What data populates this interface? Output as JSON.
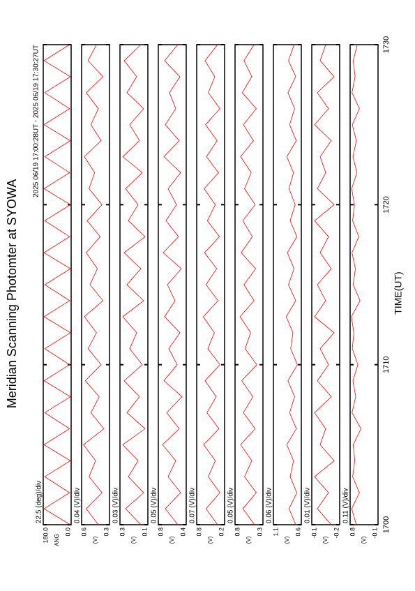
{
  "chart_data": [
    {
      "type": "line",
      "title": "Meridian Scanning Photomter at SYOWA",
      "subtitle": "2025 06/19 17:00:28UT - 2025 06/19 17:30:27UT",
      "annotation": "22.5 (deg)/div",
      "ylabel": "ANG",
      "x": [
        1700,
        1701,
        1702,
        1703,
        1704,
        1705,
        1706,
        1707,
        1708,
        1709,
        1710,
        1711,
        1712,
        1713,
        1714,
        1715,
        1716,
        1717,
        1718,
        1719,
        1720,
        1721,
        1722,
        1723,
        1724,
        1725,
        1726,
        1727,
        1728,
        1729,
        1730
      ],
      "xlim": [
        1700,
        1730
      ],
      "xticks": [
        1700,
        1710,
        1720,
        1730
      ],
      "ylim": [
        0,
        180
      ],
      "yticks": [
        {
          "value": 180,
          "label": "180.0"
        },
        {
          "value": 0,
          "label": "0.0"
        }
      ],
      "series": [
        {
          "color": "#ff0000",
          "values": [
            5,
            175,
            10,
            170,
            5,
            175,
            10,
            170,
            5,
            175,
            10,
            170,
            5,
            175,
            10,
            170,
            5,
            175,
            10,
            170,
            5,
            175,
            10,
            170,
            5,
            175,
            10,
            170,
            5,
            175,
            10
          ]
        }
      ]
    },
    {
      "type": "line",
      "annotation": "0.04 (V)/div",
      "ylabel": "(V)",
      "x": [
        1700,
        1701,
        1702,
        1703,
        1704,
        1705,
        1706,
        1707,
        1708,
        1709,
        1710,
        1711,
        1712,
        1713,
        1714,
        1715,
        1716,
        1717,
        1718,
        1719,
        1720,
        1721,
        1722,
        1723,
        1724,
        1725,
        1726,
        1727,
        1728,
        1729,
        1730
      ],
      "xlim": [
        1700,
        1730
      ],
      "xticks": [
        1700,
        1710,
        1720,
        1730
      ],
      "ylim": [
        0.3,
        0.6
      ],
      "yticks": [
        0.6,
        0.3
      ],
      "series": [
        {
          "color": "#ff0000",
          "values": [
            0.42,
            0.55,
            0.38,
            0.52,
            0.45,
            0.58,
            0.36,
            0.5,
            0.41,
            0.56,
            0.39,
            0.53,
            0.44,
            0.57,
            0.37,
            0.51,
            0.43,
            0.55,
            0.4,
            0.54,
            0.38,
            0.52,
            0.46,
            0.57,
            0.39,
            0.5,
            0.42,
            0.55,
            0.37,
            0.53,
            0.44
          ]
        }
      ]
    },
    {
      "type": "line",
      "annotation": "0.03 (V)/div",
      "ylabel": "(V)",
      "x": [
        1700,
        1701,
        1702,
        1703,
        1704,
        1705,
        1706,
        1707,
        1708,
        1709,
        1710,
        1711,
        1712,
        1713,
        1714,
        1715,
        1716,
        1717,
        1718,
        1719,
        1720,
        1721,
        1722,
        1723,
        1724,
        1725,
        1726,
        1727,
        1728,
        1729,
        1730
      ],
      "xlim": [
        1700,
        1730
      ],
      "xticks": [
        1700,
        1710,
        1720,
        1730
      ],
      "ylim": [
        0.1,
        0.3
      ],
      "yticks": [
        0.3,
        0.1
      ],
      "series": [
        {
          "color": "#ff0000",
          "values": [
            0.15,
            0.26,
            0.13,
            0.24,
            0.17,
            0.28,
            0.12,
            0.25,
            0.16,
            0.27,
            0.14,
            0.23,
            0.18,
            0.28,
            0.13,
            0.25,
            0.15,
            0.27,
            0.12,
            0.24,
            0.17,
            0.26,
            0.14,
            0.28,
            0.16,
            0.23,
            0.13,
            0.25,
            0.18,
            0.27,
            0.15
          ]
        }
      ]
    },
    {
      "type": "line",
      "annotation": "0.05 (V)/div",
      "ylabel": "(V)",
      "x": [
        1700,
        1701,
        1702,
        1703,
        1704,
        1705,
        1706,
        1707,
        1708,
        1709,
        1710,
        1711,
        1712,
        1713,
        1714,
        1715,
        1716,
        1717,
        1718,
        1719,
        1720,
        1721,
        1722,
        1723,
        1724,
        1725,
        1726,
        1727,
        1728,
        1729,
        1730
      ],
      "xlim": [
        1700,
        1730
      ],
      "xticks": [
        1700,
        1710,
        1720,
        1730
      ],
      "ylim": [
        0.4,
        0.8
      ],
      "yticks": [
        0.8,
        0.4
      ],
      "series": [
        {
          "color": "#ff0000",
          "values": [
            0.52,
            0.7,
            0.48,
            0.66,
            0.55,
            0.74,
            0.5,
            0.68,
            0.46,
            0.72,
            0.53,
            0.65,
            0.49,
            0.71,
            0.56,
            0.67,
            0.47,
            0.73,
            0.51,
            0.69,
            0.54,
            0.66,
            0.48,
            0.72,
            0.5,
            0.7,
            0.55,
            0.64,
            0.49,
            0.71,
            0.52
          ]
        }
      ]
    },
    {
      "type": "line",
      "annotation": "0.07 (V)/div",
      "ylabel": "(V)",
      "x": [
        1700,
        1701,
        1702,
        1703,
        1704,
        1705,
        1706,
        1707,
        1708,
        1709,
        1710,
        1711,
        1712,
        1713,
        1714,
        1715,
        1716,
        1717,
        1718,
        1719,
        1720,
        1721,
        1722,
        1723,
        1724,
        1725,
        1726,
        1727,
        1728,
        1729,
        1730
      ],
      "xlim": [
        1700,
        1730
      ],
      "xticks": [
        1700,
        1710,
        1720,
        1730
      ],
      "ylim": [
        0.2,
        0.8
      ],
      "yticks": [
        0.8,
        0.2
      ],
      "series": [
        {
          "color": "#ff0000",
          "values": [
            0.35,
            0.6,
            0.3,
            0.55,
            0.4,
            0.65,
            0.32,
            0.58,
            0.38,
            0.62,
            0.3,
            0.56,
            0.42,
            0.66,
            0.34,
            0.6,
            0.37,
            0.63,
            0.31,
            0.57,
            0.4,
            0.64,
            0.33,
            0.59,
            0.36,
            0.61,
            0.3,
            0.55,
            0.41,
            0.62,
            0.35
          ]
        }
      ]
    },
    {
      "type": "line",
      "annotation": "0.05 (V)/div",
      "ylabel": "(V)",
      "x": [
        1700,
        1701,
        1702,
        1703,
        1704,
        1705,
        1706,
        1707,
        1708,
        1709,
        1710,
        1711,
        1712,
        1713,
        1714,
        1715,
        1716,
        1717,
        1718,
        1719,
        1720,
        1721,
        1722,
        1723,
        1724,
        1725,
        1726,
        1727,
        1728,
        1729,
        1730
      ],
      "xlim": [
        1700,
        1730
      ],
      "xticks": [
        1700,
        1710,
        1720,
        1730
      ],
      "ylim": [
        0.3,
        0.8
      ],
      "yticks": [
        0.8,
        0.3
      ],
      "series": [
        {
          "color": "#ff0000",
          "values": [
            0.45,
            0.66,
            0.42,
            0.63,
            0.5,
            0.7,
            0.44,
            0.65,
            0.48,
            0.68,
            0.41,
            0.62,
            0.52,
            0.71,
            0.46,
            0.64,
            0.43,
            0.69,
            0.49,
            0.66,
            0.44,
            0.63,
            0.51,
            0.7,
            0.47,
            0.65,
            0.42,
            0.67,
            0.5,
            0.64,
            0.46
          ]
        }
      ]
    },
    {
      "type": "line",
      "annotation": "0.06 (V)/div",
      "ylabel": "(V)",
      "x": [
        1700,
        1701,
        1702,
        1703,
        1704,
        1705,
        1706,
        1707,
        1708,
        1709,
        1710,
        1711,
        1712,
        1713,
        1714,
        1715,
        1716,
        1717,
        1718,
        1719,
        1720,
        1721,
        1722,
        1723,
        1724,
        1725,
        1726,
        1727,
        1728,
        1729,
        1730
      ],
      "xlim": [
        1700,
        1730
      ],
      "xticks": [
        1700,
        1710,
        1720,
        1730
      ],
      "ylim": [
        0.6,
        1.1
      ],
      "yticks": [
        1.1,
        0.6
      ],
      "series": [
        {
          "color": "#ff0000",
          "values": [
            0.7,
            0.82,
            0.68,
            0.8,
            0.74,
            0.86,
            0.69,
            0.81,
            0.72,
            0.84,
            0.67,
            0.79,
            0.75,
            0.87,
            0.7,
            0.83,
            0.73,
            0.85,
            0.68,
            0.8,
            0.71,
            0.82,
            0.74,
            0.86,
            0.69,
            0.81,
            0.72,
            0.84,
            0.7,
            0.83,
            0.73
          ]
        }
      ]
    },
    {
      "type": "line",
      "annotation": "0.01 (V)/div",
      "ylabel": "(V)",
      "x": [
        1700,
        1701,
        1702,
        1703,
        1704,
        1705,
        1706,
        1707,
        1708,
        1709,
        1710,
        1711,
        1712,
        1713,
        1714,
        1715,
        1716,
        1717,
        1718,
        1719,
        1720,
        1721,
        1722,
        1723,
        1724,
        1725,
        1726,
        1727,
        1728,
        1729,
        1730
      ],
      "xlim": [
        1700,
        1730
      ],
      "xticks": [
        1700,
        1710,
        1720,
        1730
      ],
      "ylim": [
        -0.2,
        -0.1
      ],
      "yticks": [
        -0.1,
        -0.2
      ],
      "series": [
        {
          "color": "#ff0000",
          "values": [
            -0.17,
            -0.12,
            -0.16,
            -0.11,
            -0.18,
            -0.13,
            -0.15,
            -0.11,
            -0.17,
            -0.12,
            -0.16,
            -0.13,
            -0.18,
            -0.11,
            -0.15,
            -0.12,
            -0.17,
            -0.13,
            -0.16,
            -0.11,
            -0.18,
            -0.12,
            -0.15,
            -0.13,
            -0.17,
            -0.11,
            -0.16,
            -0.12,
            -0.18,
            -0.13,
            -0.15
          ]
        }
      ]
    },
    {
      "type": "line",
      "annotation": "0.11 (V)/div",
      "ylabel": "(V)",
      "xlabel": "TIME(UT)",
      "x": [
        1700,
        1701,
        1702,
        1703,
        1704,
        1705,
        1706,
        1707,
        1708,
        1709,
        1710,
        1711,
        1712,
        1713,
        1714,
        1715,
        1716,
        1717,
        1718,
        1719,
        1720,
        1721,
        1722,
        1723,
        1724,
        1725,
        1726,
        1727,
        1728,
        1729,
        1730
      ],
      "xlim": [
        1700,
        1730
      ],
      "xticks": [
        1700,
        1710,
        1720,
        1730
      ],
      "ylim": [
        -0.1,
        0.8
      ],
      "yticks": [
        0.8,
        -0.1
      ],
      "series": [
        {
          "color": "#ff0000",
          "values": [
            0.6,
            0.75,
            0.5,
            0.72,
            0.65,
            0.7,
            0.45,
            0.74,
            0.62,
            0.71,
            0.55,
            0.73,
            0.68,
            0.76,
            0.48,
            0.7,
            0.63,
            0.74,
            0.52,
            0.72,
            0.66,
            0.75,
            0.58,
            0.71,
            0.6,
            0.73,
            0.5,
            0.74,
            0.64,
            0.7,
            0.57
          ]
        }
      ]
    }
  ]
}
